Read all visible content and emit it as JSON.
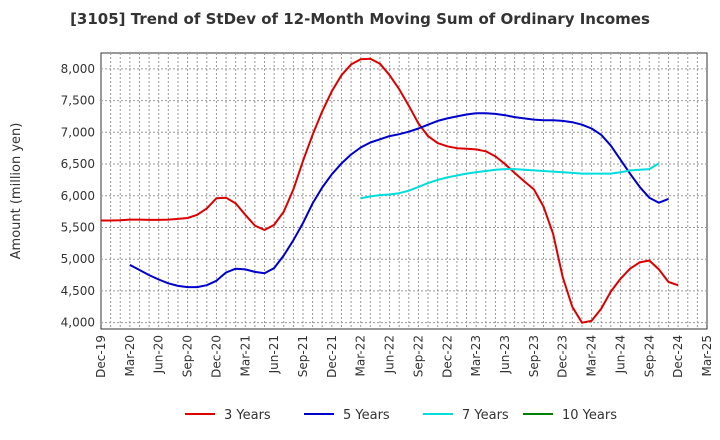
{
  "chart_data": {
    "type": "line",
    "title": "[3105]  Trend of StDev of 12-Month Moving Sum of Ordinary Incomes",
    "xlabel": "",
    "ylabel": "Amount (million yen)",
    "ylim": [
      3900,
      8250
    ],
    "yticks": [
      4000,
      4500,
      5000,
      5500,
      6000,
      6500,
      7000,
      7500,
      8000
    ],
    "ytick_labels": [
      "4,000",
      "4,500",
      "5,000",
      "5,500",
      "6,000",
      "6,500",
      "7,000",
      "7,500",
      "8,000"
    ],
    "x_start": "Dec-19",
    "x_range_months": [
      0,
      63
    ],
    "xticks": [
      "Dec-19",
      "Mar-20",
      "Jun-20",
      "Sep-20",
      "Dec-20",
      "Mar-21",
      "Jun-21",
      "Sep-21",
      "Dec-21",
      "Mar-22",
      "Jun-22",
      "Sep-22",
      "Dec-22",
      "Mar-23",
      "Jun-23",
      "Sep-23",
      "Dec-23",
      "Mar-24",
      "Jun-24",
      "Sep-24",
      "Dec-24",
      "Mar-25"
    ],
    "grid": true,
    "legend_position": "bottom",
    "series": [
      {
        "name": "3 Years",
        "color": "#dd0000",
        "start_month": 0,
        "values": [
          5610,
          5610,
          5615,
          5625,
          5625,
          5620,
          5620,
          5625,
          5635,
          5650,
          5700,
          5800,
          5960,
          5970,
          5880,
          5700,
          5530,
          5460,
          5540,
          5750,
          6100,
          6550,
          6960,
          7330,
          7650,
          7900,
          8070,
          8150,
          8160,
          8080,
          7900,
          7680,
          7420,
          7140,
          6940,
          6830,
          6780,
          6750,
          6740,
          6730,
          6700,
          6620,
          6500,
          6360,
          6230,
          6100,
          5830,
          5400,
          4720,
          4250,
          4000,
          4030,
          4220,
          4490,
          4690,
          4850,
          4950,
          4980,
          4840,
          4640,
          4590
        ]
      },
      {
        "name": "5 Years",
        "color": "#0000cc",
        "start_month": 3,
        "values": [
          4910,
          4830,
          4750,
          4680,
          4620,
          4580,
          4560,
          4560,
          4590,
          4660,
          4790,
          4850,
          4840,
          4800,
          4780,
          4860,
          5060,
          5300,
          5570,
          5880,
          6130,
          6340,
          6510,
          6650,
          6760,
          6840,
          6890,
          6940,
          6970,
          7010,
          7060,
          7120,
          7180,
          7220,
          7250,
          7280,
          7300,
          7300,
          7290,
          7270,
          7240,
          7220,
          7200,
          7190,
          7190,
          7180,
          7160,
          7120,
          7060,
          6960,
          6790,
          6570,
          6350,
          6140,
          5970,
          5890,
          5950
        ]
      },
      {
        "name": "7 Years",
        "color": "#00dddd",
        "start_month": 27,
        "values": [
          5960,
          5990,
          6010,
          6020,
          6040,
          6080,
          6140,
          6200,
          6250,
          6290,
          6320,
          6350,
          6370,
          6390,
          6410,
          6420,
          6420,
          6410,
          6400,
          6390,
          6380,
          6370,
          6360,
          6350,
          6350,
          6350,
          6350,
          6370,
          6400,
          6410,
          6420,
          6510
        ]
      },
      {
        "name": "10 Years",
        "color": "#008000",
        "start_month": 0,
        "values": []
      }
    ]
  }
}
